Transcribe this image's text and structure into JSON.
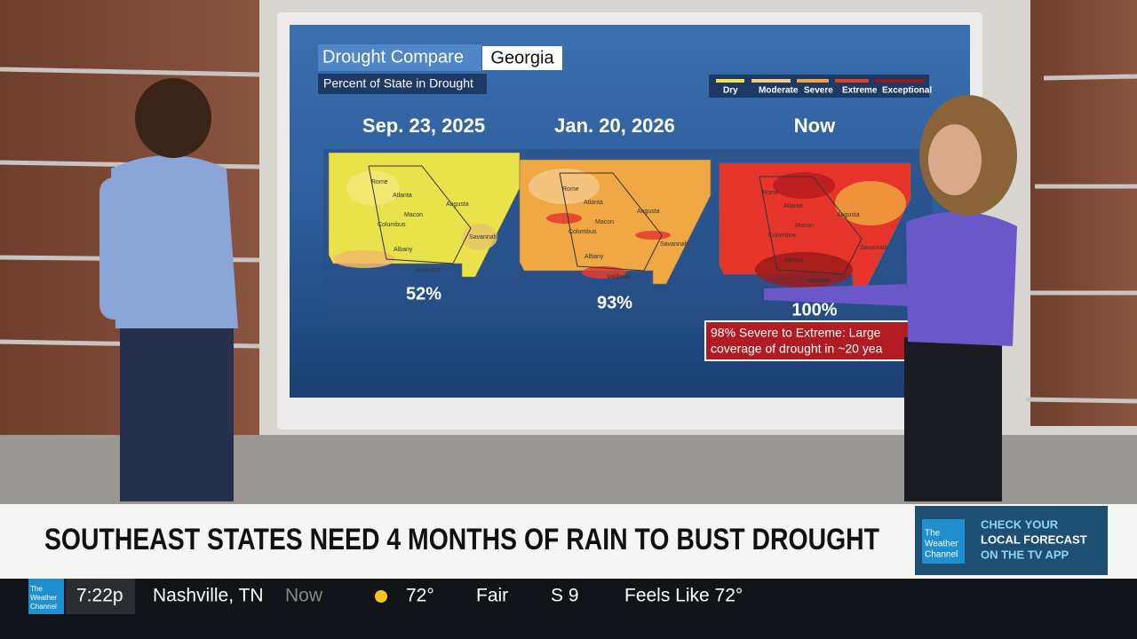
{
  "screen": {
    "title": "Drought Compare",
    "state": "Georgia",
    "subtitle": "Percent of State in Drought",
    "legend": [
      "Dry",
      "Moderate",
      "Severe",
      "Extreme",
      "Exceptional"
    ],
    "cities": [
      "Rome",
      "Atlanta",
      "Augusta",
      "Macon",
      "Columbus",
      "Savannah",
      "Albany",
      "Valdosta"
    ],
    "panels": [
      {
        "date": "Sep. 23, 2025",
        "percent": "52%"
      },
      {
        "date": "Jan. 20, 2026",
        "percent": "93%"
      },
      {
        "date": "Now",
        "percent": "100%"
      }
    ],
    "note": [
      "98% Severe to Extreme: Large",
      "coverage of drought in ~20 yea"
    ]
  },
  "banner": {
    "headline": "SOUTHEAST STATES NEED 4 MONTHS OF RAIN TO BUST DROUGHT",
    "logo": [
      "The",
      "Weather",
      "Channel"
    ],
    "promo": [
      "CHECK YOUR",
      "LOCAL FORECAST",
      "ON THE TV APP"
    ]
  },
  "ticker": {
    "logo": [
      "The",
      "Weather",
      "Channel"
    ],
    "time": "7:22p",
    "location": "Nashville, TN",
    "label": "Now",
    "temp": "72°",
    "condition": "Fair",
    "wind": "S 9",
    "feels_like": "Feels Like 72°"
  }
}
